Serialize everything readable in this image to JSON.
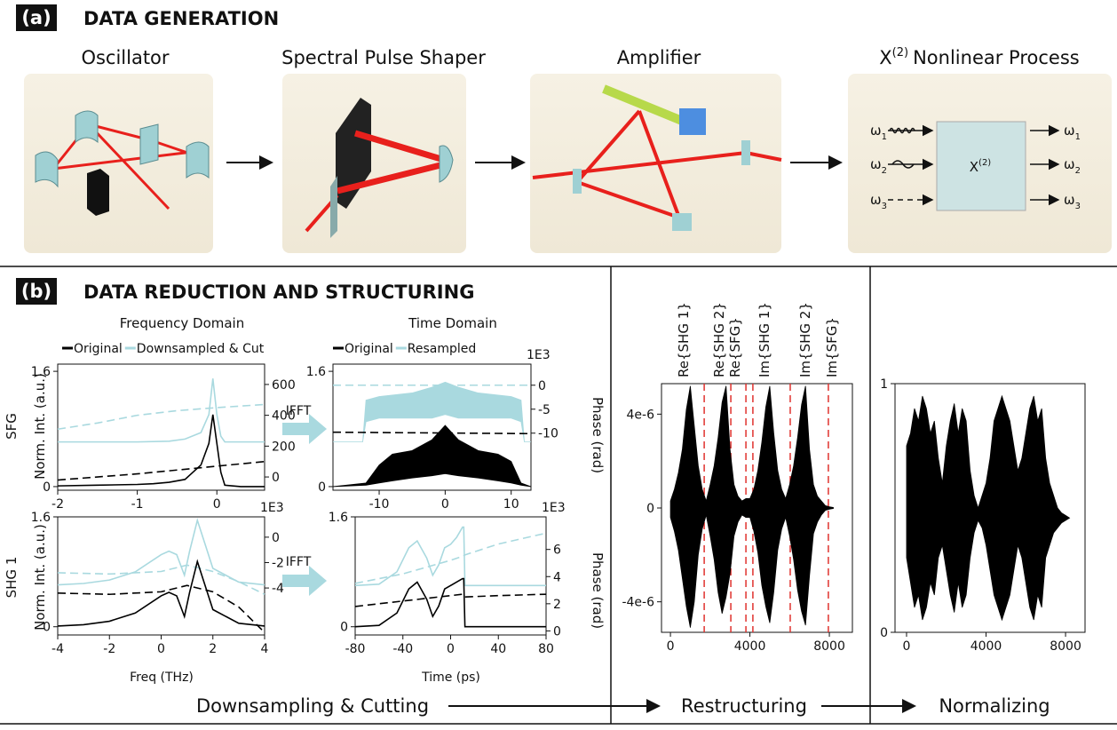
{
  "panel_a": {
    "label": "(a)",
    "title": "DATA GENERATION",
    "stages": [
      {
        "title": "Oscillator"
      },
      {
        "title": "Spectral Pulse Shaper"
      },
      {
        "title": "Amplifier"
      },
      {
        "title_symbol": "Χ",
        "title_sup": "(2)",
        "title": "Nonlinear Process"
      }
    ],
    "nonlinear": {
      "box_symbol": "Χ",
      "box_sup": "(2)",
      "inputs": [
        {
          "base": "ω",
          "sub": "1"
        },
        {
          "base": "ω",
          "sub": "2"
        },
        {
          "base": "ω",
          "sub": "3"
        }
      ],
      "outputs": [
        {
          "base": "ω",
          "sub": "1"
        },
        {
          "base": "ω",
          "sub": "2"
        },
        {
          "base": "ω",
          "sub": "3"
        }
      ]
    }
  },
  "panel_b": {
    "label": "(b)",
    "title": "DATA REDUCTION AND STRUCTURING",
    "y_label": "Norm. Int. (a.u.)",
    "transform": "IFFT",
    "columns": [
      {
        "title": "Frequency Domain",
        "legend": [
          {
            "name": "Original",
            "color": "#000000"
          },
          {
            "name": "Downsampled & Cut",
            "color": "#a9d9df"
          }
        ],
        "x_label": "Freq (THz)"
      },
      {
        "title": "Time Domain",
        "legend": [
          {
            "name": "Original",
            "color": "#000000"
          },
          {
            "name": "Resampled",
            "color": "#a9d9df"
          }
        ],
        "x_label": "Time (ps)",
        "y2_label": "Phase (rad)"
      }
    ],
    "rows": [
      {
        "label": "SFG"
      },
      {
        "label": "SHG 1"
      }
    ],
    "plots": [
      {
        "xlim": [
          -2,
          0.6
        ],
        "ylim": [
          -0.05,
          1.7
        ],
        "xticks": [
          -2,
          -1,
          0
        ],
        "yticks": [
          0,
          1.6
        ],
        "y2lim": [
          -86,
          732
        ],
        "y2ticks": [
          0,
          200,
          400,
          600
        ],
        "series": [
          {
            "color": "#a9d9df",
            "style": "solid",
            "x": [
              -2,
              -1,
              -0.6,
              -0.4,
              -0.2,
              -0.1,
              -0.05,
              0,
              0.05,
              0.1,
              0.6
            ],
            "values": [
              0.62,
              0.62,
              0.63,
              0.66,
              0.75,
              1.0,
              1.5,
              1.0,
              0.7,
              0.62,
              0.62
            ]
          },
          {
            "color": "#a9d9df",
            "style": "dashed",
            "axis": "y2",
            "x": [
              -2,
              -1.5,
              -1,
              -0.5,
              0,
              0.6
            ],
            "values": [
              310,
              350,
              400,
              430,
              450,
              470
            ]
          },
          {
            "color": "#000000",
            "style": "solid",
            "x": [
              -2,
              -1.5,
              -1,
              -0.8,
              -0.6,
              -0.4,
              -0.3,
              -0.2,
              -0.1,
              -0.05,
              0,
              0.05,
              0.1,
              0.3,
              0.6
            ],
            "values": [
              0.01,
              0.02,
              0.03,
              0.04,
              0.06,
              0.1,
              0.2,
              0.3,
              0.6,
              1.0,
              0.6,
              0.2,
              0.02,
              0,
              0
            ]
          },
          {
            "color": "#000000",
            "style": "dashed",
            "axis": "y2",
            "x": [
              -2,
              -1.5,
              -1,
              -0.5,
              0,
              0.6
            ],
            "values": [
              -20,
              0,
              20,
              45,
              70,
              100
            ]
          }
        ]
      },
      {
        "xlim": [
          -17,
          13
        ],
        "ylim": [
          -0.05,
          1.7
        ],
        "xticks": [
          -10,
          0,
          10
        ],
        "yticks": [
          0,
          1.6
        ],
        "y2lim": [
          -21.9,
          4.4
        ],
        "y2ticks": [
          0,
          -5,
          -10
        ],
        "y2_multiplier": "1E3",
        "series": [
          {
            "color": "#a9d9df",
            "style": "band",
            "x": [
              -17,
              -12.5,
              -12,
              -10,
              -5,
              -2,
              0,
              2,
              5,
              10,
              11.5,
              12,
              13
            ],
            "upper": [
              0.62,
              0.62,
              1.2,
              1.25,
              1.3,
              1.38,
              1.45,
              1.38,
              1.3,
              1.25,
              1.2,
              0.62,
              0.62
            ],
            "lower": [
              0.62,
              0.62,
              0.9,
              0.95,
              0.95,
              0.95,
              1.0,
              0.95,
              0.95,
              0.95,
              0.9,
              0.62,
              0.62
            ]
          },
          {
            "color": "#a9d9df",
            "style": "dashed",
            "axis": "y2",
            "x": [
              -17,
              13
            ],
            "values": [
              0,
              0
            ]
          },
          {
            "color": "#000000",
            "style": "band",
            "x": [
              -17,
              -12,
              -10,
              -8,
              -5,
              -2,
              0,
              2,
              5,
              8,
              10,
              11.5,
              13
            ],
            "upper": [
              0,
              0.05,
              0.3,
              0.45,
              0.5,
              0.65,
              0.85,
              0.65,
              0.5,
              0.45,
              0.35,
              0.05,
              0
            ],
            "lower": [
              0,
              0.02,
              0.05,
              0.08,
              0.12,
              0.15,
              0.18,
              0.15,
              0.12,
              0.08,
              0.05,
              0.02,
              0
            ]
          },
          {
            "color": "#000000",
            "style": "dashed",
            "axis": "y2",
            "x": [
              -17,
              13
            ],
            "values": [
              -9.8,
              -10.1
            ]
          }
        ]
      },
      {
        "xlim": [
          -4,
          4
        ],
        "ylim": [
          -0.12,
          1.6
        ],
        "xticks": [
          -4,
          -2,
          0,
          2,
          4
        ],
        "yticks": [
          0,
          1.6
        ],
        "y2lim": [
          -7.7,
          1.6
        ],
        "y2ticks": [
          0,
          -2,
          -4
        ],
        "y2_multiplier": "1E3",
        "series": [
          {
            "color": "#a9d9df",
            "style": "solid",
            "x": [
              -4,
              -3,
              -2,
              -1,
              0,
              0.3,
              0.6,
              0.9,
              1.1,
              1.4,
              1.7,
              2,
              3,
              4
            ],
            "values": [
              0.61,
              0.63,
              0.68,
              0.8,
              1.05,
              1.1,
              1.05,
              0.75,
              1.1,
              1.55,
              1.2,
              0.85,
              0.65,
              0.61
            ]
          },
          {
            "color": "#a9d9df",
            "style": "dashed",
            "axis": "y2",
            "x": [
              -4,
              -2,
              0,
              1,
              2,
              3,
              4
            ],
            "values": [
              -2.8,
              -2.9,
              -2.7,
              -2.2,
              -2.7,
              -3.5,
              -4.5
            ]
          },
          {
            "color": "#000000",
            "style": "solid",
            "x": [
              -4,
              -3,
              -2,
              -1,
              0,
              0.3,
              0.6,
              0.9,
              1.1,
              1.4,
              1.7,
              2,
              3,
              4
            ],
            "values": [
              0.01,
              0.03,
              0.08,
              0.2,
              0.45,
              0.5,
              0.45,
              0.15,
              0.5,
              0.95,
              0.6,
              0.25,
              0.05,
              0.01
            ]
          },
          {
            "color": "#000000",
            "style": "dashed",
            "axis": "y2",
            "x": [
              -4,
              -2,
              0,
              1,
              2,
              3,
              4
            ],
            "values": [
              -4.4,
              -4.5,
              -4.3,
              -3.8,
              -4.3,
              -5.5,
              -7.5
            ]
          }
        ]
      },
      {
        "xlim": [
          -80,
          80
        ],
        "ylim": [
          -0.12,
          1.6
        ],
        "xticks": [
          -80,
          -40,
          0,
          40,
          80
        ],
        "yticks": [
          0,
          1.6
        ],
        "y2lim": [
          -0.3,
          8.4
        ],
        "y2ticks": [
          0,
          2,
          4,
          6
        ],
        "y2_multiplier": "1E3",
        "series": [
          {
            "color": "#a9d9df",
            "style": "solid",
            "x": [
              -80,
              -60,
              -45,
              -35,
              -28,
              -20,
              -15,
              -10,
              -5,
              0,
              5,
              10,
              11,
              12,
              80
            ],
            "values": [
              0.6,
              0.62,
              0.8,
              1.15,
              1.25,
              1.0,
              0.75,
              0.9,
              1.15,
              1.2,
              1.3,
              1.45,
              1.45,
              0.6,
              0.6
            ]
          },
          {
            "color": "#a9d9df",
            "style": "dashed",
            "axis": "y2",
            "x": [
              -80,
              -40,
              0,
              10,
              12,
              40,
              80
            ],
            "values": [
              3.5,
              4.2,
              5.2,
              5.5,
              5.6,
              6.4,
              7.2
            ]
          },
          {
            "color": "#000000",
            "style": "solid",
            "x": [
              -80,
              -60,
              -45,
              -35,
              -28,
              -20,
              -15,
              -10,
              -5,
              0,
              5,
              10,
              11,
              12,
              80
            ],
            "values": [
              0,
              0.02,
              0.2,
              0.55,
              0.65,
              0.4,
              0.15,
              0.3,
              0.55,
              0.6,
              0.65,
              0.7,
              0.7,
              0,
              0
            ]
          },
          {
            "color": "#000000",
            "style": "dashed",
            "axis": "y2",
            "x": [
              -80,
              -40,
              0,
              10,
              12,
              40,
              80
            ],
            "values": [
              1.8,
              2.2,
              2.6,
              2.7,
              2.5,
              2.6,
              2.7
            ]
          }
        ]
      }
    ],
    "restructuring": {
      "segments": [
        "Re{SHG 1}",
        "Re{SHG 2}",
        "Re{SFG}",
        "Im{SHG 1}",
        "Im{SHG 2}",
        "Im{SFG}"
      ],
      "xlim": [
        -450,
        9160
      ],
      "ylim": [
        -5.3e-06,
        5.3e-06
      ],
      "xticks": [
        0,
        4000,
        8000
      ],
      "yticks": [
        {
          "value": 4e-06,
          "label": "4e-6"
        },
        0,
        {
          "value": -4e-06,
          "label": "-4e-6"
        }
      ],
      "vlines": [
        1700,
        3040,
        3800,
        4150,
        6030,
        7950
      ],
      "series": [
        {
          "color": "#000000",
          "style": "band",
          "x": [
            0,
            200,
            400,
            600,
            800,
            1000,
            1200,
            1400,
            1600,
            1800,
            2000,
            2200,
            2400,
            2600,
            2800,
            3000,
            3200,
            3400,
            3600,
            3800,
            4000,
            4200,
            4400,
            4600,
            4800,
            5000,
            5200,
            5400,
            5600,
            5800,
            6000,
            6200,
            6400,
            6600,
            6800,
            7000,
            7200,
            7400,
            7600,
            7800,
            8000,
            8200
          ],
          "upper": [
            3e-07,
            8e-07,
            1.5e-06,
            2.5e-06,
            4.2e-06,
            5.2e-06,
            3.5e-06,
            1.8e-06,
            8e-07,
            3e-07,
            1e-06,
            1.8e-06,
            3e-06,
            4.5e-06,
            5.2e-06,
            2.5e-06,
            1e-06,
            5e-07,
            3e-07,
            4e-07,
            4e-07,
            8e-07,
            1.6e-06,
            2.8e-06,
            4.3e-06,
            5.2e-06,
            3.2e-06,
            1.6e-06,
            8e-07,
            4e-07,
            1e-06,
            1.8e-06,
            3e-06,
            4.4e-06,
            5.2e-06,
            2.5e-06,
            1e-06,
            5e-07,
            3e-07,
            1e-07,
            5e-08,
            2e-08
          ],
          "lower": [
            -4e-07,
            -1e-06,
            -1.8e-06,
            -3e-06,
            -4.2e-06,
            -5.1e-06,
            -4e-06,
            -2e-06,
            -9e-07,
            -3e-07,
            -1.2e-06,
            -2.2e-06,
            -3.6e-06,
            -4.5e-06,
            -3.8e-06,
            -2.8e-06,
            -1.2e-06,
            -6e-07,
            -3e-07,
            -4e-07,
            -4e-07,
            -1e-06,
            -1.9e-06,
            -3.3e-06,
            -4.2e-06,
            -4.9e-06,
            -3.6e-06,
            -1.8e-06,
            -9e-07,
            -4e-07,
            -1.2e-06,
            -2.2e-06,
            -3.5e-06,
            -4.4e-06,
            -5e-06,
            -2.9e-06,
            -1.1e-06,
            -6e-07,
            -3e-07,
            -1e-07,
            -5e-08,
            -2e-08
          ]
        }
      ]
    },
    "normalizing": {
      "xlim": [
        -580,
        8980
      ],
      "ylim": [
        0,
        1
      ],
      "xticks": [
        0,
        4000,
        8000
      ],
      "yticks": [
        0,
        1
      ],
      "series": [
        {
          "color": "#000000",
          "style": "band",
          "x": [
            0,
            200,
            400,
            600,
            800,
            1000,
            1200,
            1400,
            1600,
            1800,
            2000,
            2200,
            2400,
            2600,
            2800,
            3000,
            3200,
            3400,
            3600,
            3800,
            4000,
            4200,
            4400,
            4600,
            4800,
            5000,
            5200,
            5400,
            5600,
            5800,
            6000,
            6200,
            6400,
            6600,
            6800,
            7000,
            7200,
            7400,
            7600,
            7800,
            8000,
            8200
          ],
          "upper": [
            0.75,
            0.8,
            0.9,
            0.85,
            0.95,
            0.9,
            0.8,
            0.85,
            0.7,
            0.6,
            0.75,
            0.85,
            0.92,
            0.8,
            0.9,
            0.85,
            0.65,
            0.55,
            0.5,
            0.55,
            0.6,
            0.7,
            0.85,
            0.9,
            0.95,
            0.9,
            0.85,
            0.75,
            0.65,
            0.7,
            0.8,
            0.9,
            0.95,
            0.85,
            0.9,
            0.7,
            0.6,
            0.55,
            0.5,
            0.48,
            0.47,
            0.46
          ],
          "lower": [
            0.3,
            0.2,
            0.1,
            0.15,
            0.05,
            0.1,
            0.2,
            0.15,
            0.3,
            0.35,
            0.25,
            0.15,
            0.08,
            0.2,
            0.1,
            0.15,
            0.3,
            0.4,
            0.45,
            0.42,
            0.35,
            0.25,
            0.15,
            0.1,
            0.05,
            0.1,
            0.15,
            0.25,
            0.35,
            0.3,
            0.2,
            0.1,
            0.05,
            0.15,
            0.1,
            0.3,
            0.35,
            0.4,
            0.42,
            0.44,
            0.45,
            0.46
          ]
        }
      ]
    },
    "stages": [
      "Downsampling & Cutting",
      "Restructuring",
      "Normalizing"
    ]
  }
}
